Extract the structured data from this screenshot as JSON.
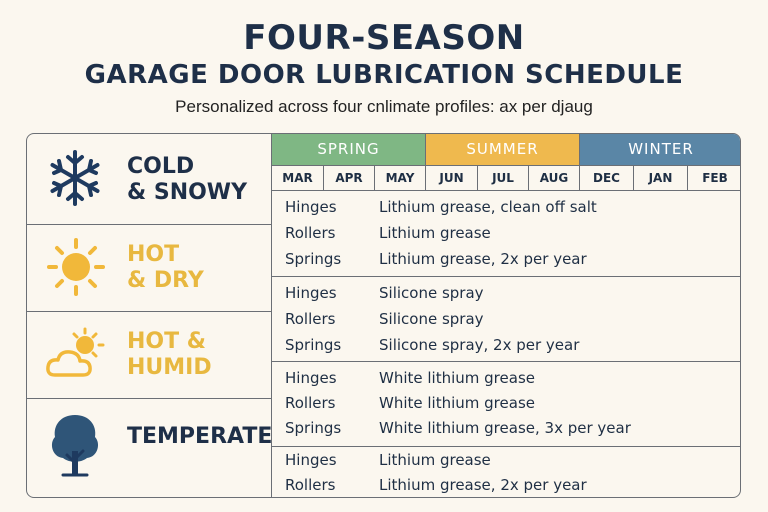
{
  "header": {
    "title_line1": "FOUR-SEASON",
    "title_line2": "GARAGE DOOR LUBRICATION SCHEDULE",
    "subtitle": "Personalized across four cnlimate profiles: ax per djaug"
  },
  "seasons": [
    {
      "label": "SPRING",
      "color": "#7fb784"
    },
    {
      "label": "SUMMER",
      "color": "#efb94e"
    },
    {
      "label": "WINTER",
      "color": "#5a86a6"
    }
  ],
  "months": [
    "MAR",
    "APR",
    "MAY",
    "JUN",
    "JUL",
    "AUG",
    "DEC",
    "JAN",
    "FEB"
  ],
  "profiles": [
    {
      "label_line1": "COLD",
      "label_line2": "& SNOWY",
      "icon": "snowflake-icon",
      "color": "#1e2f48",
      "rows": [
        {
          "part": "Hinges",
          "lube": "Lithium grease, clean off salt"
        },
        {
          "part": "Rollers",
          "lube": "Lithium grease"
        },
        {
          "part": "Springs",
          "lube": "Lithium grease, 2x per year"
        }
      ]
    },
    {
      "label_line1": "HOT",
      "label_line2": "& DRY",
      "icon": "sun-icon",
      "color": "#e8b840",
      "rows": [
        {
          "part": "Hinges",
          "lube": "Silicone spray"
        },
        {
          "part": "Rollers",
          "lube": "Silicone spray"
        },
        {
          "part": "Springs",
          "lube": "Silicone spray, 2x per year"
        }
      ]
    },
    {
      "label_line1": "HOT &",
      "label_line2": "HUMID",
      "icon": "sun-cloud-icon",
      "color": "#e8b840",
      "rows": [
        {
          "part": "Hinges",
          "lube": "White lithium grease"
        },
        {
          "part": "Rollers",
          "lube": "White lithium grease"
        },
        {
          "part": "Springs",
          "lube": "White lithium grease, 3x per year"
        }
      ]
    },
    {
      "label_line1": "TEMPERATE",
      "label_line2": "",
      "icon": "tree-icon",
      "color": "#1e2f48",
      "rows": [
        {
          "part": "Hinges",
          "lube": "Lithium grease"
        },
        {
          "part": "Rollers",
          "lube": "Lithium grease, 2x per year"
        }
      ]
    }
  ]
}
